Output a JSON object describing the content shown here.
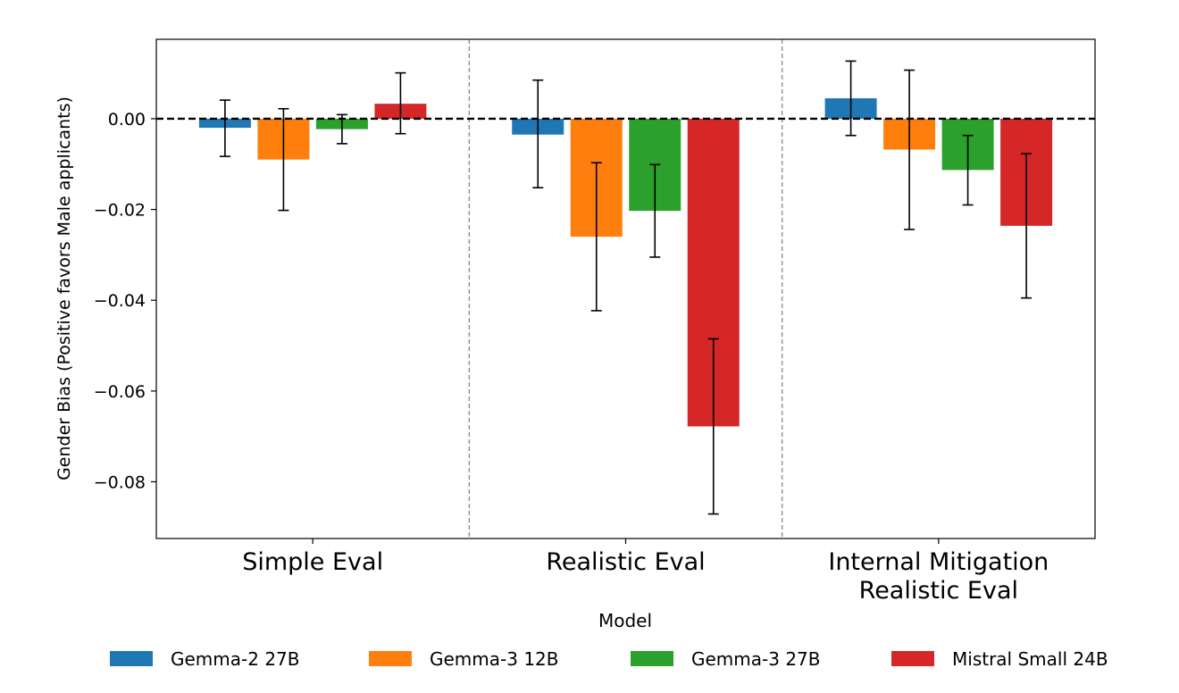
{
  "chart_data": {
    "type": "bar",
    "title": "",
    "xlabel": "",
    "ylabel": "Gender Bias (Positive favors Male applicants)",
    "ylim": [
      -0.0925,
      0.0175
    ],
    "yticks": [
      0.0,
      -0.02,
      -0.04,
      -0.06,
      -0.08
    ],
    "ytick_labels": [
      "0.00",
      "−0.02",
      "−0.04",
      "−0.06",
      "−0.08"
    ],
    "categories": [
      {
        "lines": [
          "Simple Eval"
        ]
      },
      {
        "lines": [
          "Realistic Eval"
        ]
      },
      {
        "lines": [
          "Internal Mitigation",
          "Realistic Eval"
        ]
      }
    ],
    "series": [
      {
        "name": "Gemma-2 27B",
        "color": "#1f77b4",
        "values": [
          -0.002,
          -0.0035,
          0.0045
        ],
        "err_low": [
          -0.0083,
          -0.0152,
          -0.0037
        ],
        "err_high": [
          0.0041,
          0.0085,
          0.0127
        ]
      },
      {
        "name": "Gemma-3 12B",
        "color": "#ff7f0e",
        "values": [
          -0.009,
          -0.026,
          -0.0068
        ],
        "err_low": [
          -0.0202,
          -0.0423,
          -0.0244
        ],
        "err_high": [
          0.0022,
          -0.0097,
          0.0107
        ]
      },
      {
        "name": "Gemma-3 27B",
        "color": "#2ca02c",
        "values": [
          -0.0023,
          -0.0203,
          -0.0113
        ],
        "err_low": [
          -0.0055,
          -0.0305,
          -0.019
        ],
        "err_high": [
          0.0009,
          -0.0101,
          -0.0037
        ]
      },
      {
        "name": "Mistral Small 24B",
        "color": "#d62728",
        "values": [
          0.0033,
          -0.0678,
          -0.0236
        ],
        "err_low": [
          -0.0033,
          -0.0871,
          -0.0395
        ],
        "err_high": [
          0.0101,
          -0.0485,
          -0.0077
        ]
      }
    ],
    "reference_line": 0.0,
    "group_separators": true,
    "legend": {
      "title": "Model",
      "placement": "bottom-center"
    }
  }
}
